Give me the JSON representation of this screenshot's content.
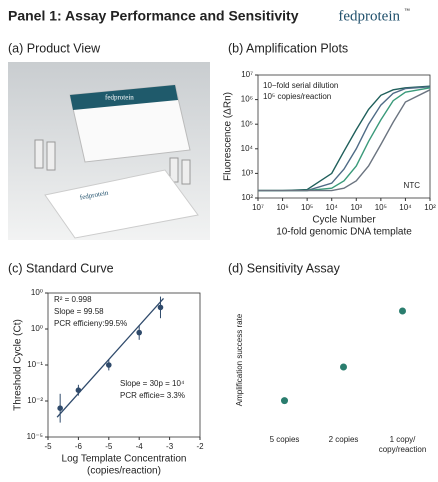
{
  "title": "Panel 1: Assay Performance and Sensitivity",
  "brand": "fedprotein",
  "brand_mark": "™",
  "product_view": {
    "title": "(a) Product View",
    "box_label": "fedprotein",
    "card_label": "fedprotein"
  },
  "chart_data": [
    {
      "type": "line",
      "title": "(b) Amplification Plots",
      "y_label": "Fluorescence (ΔRn)",
      "x_label": "Cycle Number",
      "x_sublabel": "10-fold genomic DNA template",
      "annotations": [
        "10−fold serial dilution",
        "10⁵ copies/reaction",
        "NTC"
      ],
      "x": [
        0,
        1,
        2,
        3,
        3.5,
        4,
        4.5,
        5,
        5.5,
        6,
        7
      ],
      "xlim": [
        0,
        7
      ],
      "xticks": [
        {
          "value": 0,
          "label": "10⁷"
        },
        {
          "value": 1,
          "label": "10⁶"
        },
        {
          "value": 2,
          "label": "10⁵"
        },
        {
          "value": 3,
          "label": "10⁴"
        },
        {
          "value": 4,
          "label": "10³"
        },
        {
          "value": 5,
          "label": "10⁵"
        },
        {
          "value": 6,
          "label": "10⁴"
        },
        {
          "value": 7,
          "label": "10²"
        }
      ],
      "log_y": true,
      "ylim": [
        100,
        10000000
      ],
      "yticks": [
        {
          "value": 10000000,
          "label": "10⁷"
        },
        {
          "value": 1000000,
          "label": "10⁶"
        },
        {
          "value": 100000,
          "label": "10⁵"
        },
        {
          "value": 10000,
          "label": "10⁴"
        },
        {
          "value": 1000,
          "label": "10³"
        },
        {
          "value": 100,
          "label": "10²"
        }
      ],
      "series": [
        {
          "color": "#1f5f5b",
          "values": [
            200,
            200,
            220,
            1000,
            8000,
            60000,
            400000,
            1500000,
            2500000,
            3000000,
            3500000
          ]
        },
        {
          "color": "#4f6b86",
          "values": [
            200,
            200,
            200,
            400,
            1500,
            10000,
            100000,
            600000,
            1800000,
            2800000,
            3300000
          ]
        },
        {
          "color": "#3a9a7a",
          "values": [
            200,
            200,
            200,
            250,
            500,
            2000,
            20000,
            150000,
            900000,
            2000000,
            3000000
          ]
        },
        {
          "color": "#6b7480",
          "values": [
            200,
            200,
            200,
            200,
            250,
            500,
            2000,
            15000,
            120000,
            800000,
            2500000
          ]
        }
      ]
    },
    {
      "type": "scatter",
      "title": "(c) Standard Curve",
      "y_label": "Threshold Cycle (Ct)",
      "x_label": "Log Template Concentration",
      "x_sublabel": "(copies/reaction)",
      "annotations": [
        "R² = 0.998",
        "Slope = 99.58",
        "PCR efficieny:99.5%",
        "Slope = 30p = 10⁴",
        "PCR efficie= 3.3%"
      ],
      "x": [
        -6.6,
        -6,
        -5,
        -4,
        -3.3
      ],
      "values": [
        0.8,
        1.3,
        2,
        2.9,
        3.6
      ],
      "errors": [
        0.4,
        0.15,
        0.15,
        0.2,
        0.3
      ],
      "color": "#2f4a6b",
      "fit": {
        "x": [
          -6.7,
          -3.2
        ],
        "values": [
          0.55,
          3.85
        ]
      },
      "xlim": [
        -7,
        -2
      ],
      "xticks": [
        {
          "value": -7,
          "label": "-5"
        },
        -6,
        -5,
        -4,
        -3,
        -2
      ],
      "ylim": [
        0,
        4
      ],
      "yticks": [
        {
          "value": 0,
          "label": "10⁻⁵"
        },
        {
          "value": 1,
          "label": "10⁻²"
        },
        {
          "value": 2,
          "label": "10⁻¹"
        },
        {
          "value": 3,
          "label": "10⁰"
        },
        {
          "value": 4,
          "label": "10⁰"
        }
      ]
    },
    {
      "type": "dot",
      "title": "(d) Sensitivity Assay",
      "y_label": "Amplification success rate",
      "color": "#2a7d6e",
      "categories": [
        [
          "5 copies"
        ],
        [
          "2 copies"
        ],
        [
          "1 copy/",
          "copy/reaction"
        ]
      ],
      "values": [
        2.1,
        4.5,
        8.5
      ],
      "ylim": [
        0,
        10
      ]
    }
  ]
}
